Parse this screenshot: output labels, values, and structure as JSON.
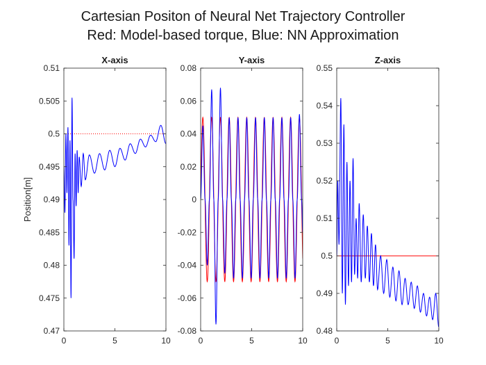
{
  "figure": {
    "title_line1": "Cartesian Positon of Neural Net Trajectory Controller",
    "title_line2": "Red: Model-based torque, Blue: NN Approximation",
    "ylabel": "Position[m]"
  },
  "colors": {
    "reference": "#ff0000",
    "nn": "#0000ff",
    "axes": "#262626"
  },
  "chart_data": [
    {
      "type": "line",
      "title": "X-axis",
      "xlim": [
        0,
        10
      ],
      "ylim": [
        0.47,
        0.51
      ],
      "xticks": [
        "0",
        "5",
        "10"
      ],
      "yticks": [
        "0.47",
        "0.475",
        "0.48",
        "0.485",
        "0.49",
        "0.495",
        "0.5",
        "0.505",
        "0.51"
      ],
      "series": [
        {
          "color": "red",
          "style": "dotted",
          "x": [
            0,
            10
          ],
          "y": [
            0.5,
            0.5
          ]
        },
        {
          "color": "blue",
          "style": "solid",
          "x": [
            0,
            0.1,
            0.2,
            0.3,
            0.4,
            0.5,
            0.6,
            0.7,
            0.8,
            0.9,
            1.0,
            1.1,
            1.2,
            1.3,
            1.4,
            1.5,
            1.7,
            1.9,
            2.1,
            2.5,
            3.0,
            3.5,
            4.0,
            4.5,
            5.0,
            5.5,
            6.0,
            6.5,
            7.0,
            7.5,
            8.0,
            8.5,
            9.0,
            9.5,
            10.0
          ],
          "y": [
            0.495,
            0.488,
            0.5,
            0.491,
            0.501,
            0.483,
            0.499,
            0.475,
            0.5055,
            0.49,
            0.481,
            0.497,
            0.489,
            0.4975,
            0.491,
            0.4965,
            0.492,
            0.497,
            0.493,
            0.4968,
            0.494,
            0.497,
            0.4945,
            0.4975,
            0.495,
            0.4978,
            0.496,
            0.4985,
            0.497,
            0.4992,
            0.498,
            0.4998,
            0.4988,
            0.5013,
            0.4985
          ]
        }
      ]
    },
    {
      "type": "line",
      "title": "Y-axis",
      "xlim": [
        0,
        10
      ],
      "ylim": [
        -0.08,
        0.08
      ],
      "xticks": [
        "0",
        "5",
        "10"
      ],
      "yticks": [
        "-0.08",
        "-0.06",
        "-0.04",
        "-0.02",
        "0",
        "0.02",
        "0.04",
        "0.06",
        "0.08"
      ],
      "series": [
        {
          "color": "red",
          "style": "solid",
          "function": "sine",
          "amplitude": 0.05,
          "period": 0.86,
          "x": [
            0,
            10
          ]
        },
        {
          "color": "blue",
          "style": "solid",
          "x": [
            0,
            0.22,
            0.43,
            0.65,
            0.86,
            1.08,
            1.29,
            1.5,
            1.72,
            1.94,
            2.15,
            2.37,
            2.58,
            2.8,
            3.01,
            3.23,
            3.44,
            3.66,
            3.87,
            4.09,
            4.3,
            4.52,
            4.73,
            4.95,
            5.16,
            5.38,
            5.59,
            5.81,
            6.02,
            6.24,
            6.45,
            6.67,
            6.88,
            7.1,
            7.31,
            7.53,
            7.74,
            7.96,
            8.17,
            8.39,
            8.6,
            8.82,
            9.03,
            9.25,
            9.46,
            9.68,
            9.89,
            10.0
          ],
          "y": [
            0.0,
            0.045,
            0.0,
            -0.04,
            0.0,
            0.067,
            0.0,
            -0.076,
            0.0,
            0.068,
            0.0,
            -0.045,
            0.0,
            0.05,
            0.0,
            -0.048,
            0.0,
            0.05,
            0.0,
            -0.048,
            0.0,
            0.05,
            0.0,
            -0.048,
            0.0,
            0.05,
            0.0,
            -0.048,
            0.0,
            0.05,
            0.0,
            -0.048,
            0.0,
            0.05,
            0.0,
            -0.048,
            0.0,
            0.05,
            0.0,
            -0.048,
            0.0,
            0.05,
            0.0,
            -0.048,
            0.0,
            0.052,
            0.0,
            -0.02
          ]
        }
      ]
    },
    {
      "type": "line",
      "title": "Z-axis",
      "xlim": [
        0,
        10
      ],
      "ylim": [
        0.48,
        0.55
      ],
      "xticks": [
        "0",
        "5",
        "10"
      ],
      "yticks": [
        "0.48",
        "0.49",
        "0.5",
        "0.51",
        "0.52",
        "0.53",
        "0.54",
        "0.55"
      ],
      "series": [
        {
          "color": "red",
          "style": "solid",
          "x": [
            0,
            10
          ],
          "y": [
            0.5,
            0.5
          ]
        },
        {
          "color": "blue",
          "style": "solid",
          "x": [
            0,
            0.1,
            0.22,
            0.4,
            0.55,
            0.7,
            0.85,
            1.0,
            1.15,
            1.3,
            1.45,
            1.6,
            1.75,
            1.9,
            2.05,
            2.2,
            2.4,
            2.6,
            2.8,
            3.0,
            3.2,
            3.4,
            3.6,
            3.8,
            4.0,
            4.3,
            4.6,
            4.9,
            5.2,
            5.5,
            5.8,
            6.1,
            6.4,
            6.7,
            7.0,
            7.3,
            7.6,
            7.9,
            8.2,
            8.5,
            8.8,
            9.1,
            9.4,
            9.7,
            10.0
          ],
          "y": [
            0.5,
            0.52,
            0.503,
            0.542,
            0.49,
            0.535,
            0.487,
            0.525,
            0.492,
            0.52,
            0.493,
            0.526,
            0.495,
            0.51,
            0.494,
            0.514,
            0.493,
            0.511,
            0.494,
            0.508,
            0.493,
            0.506,
            0.492,
            0.503,
            0.491,
            0.5,
            0.49,
            0.499,
            0.489,
            0.497,
            0.488,
            0.496,
            0.487,
            0.494,
            0.487,
            0.493,
            0.486,
            0.492,
            0.485,
            0.49,
            0.484,
            0.489,
            0.483,
            0.49,
            0.481
          ]
        }
      ]
    }
  ]
}
